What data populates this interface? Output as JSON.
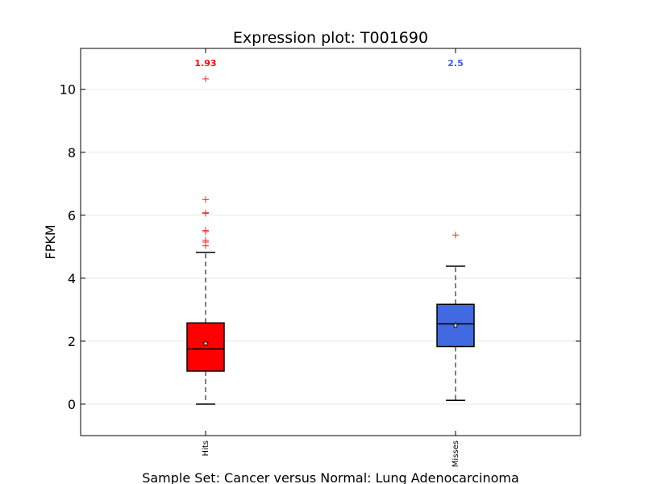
{
  "chart_data": {
    "type": "box",
    "title": "Expression plot: T001690",
    "xlabel": "Sample Set: Cancer versus Normal: Lung Adenocarcinoma",
    "ylabel": "FPKM",
    "ylim": [
      -1,
      11.3
    ],
    "yticks": [
      0,
      2,
      4,
      6,
      8,
      10
    ],
    "grid": true,
    "outlier_color": "#e0302e",
    "categories": [
      "Hits",
      "Misses"
    ],
    "boxes": [
      {
        "name": "Hits",
        "color": "#ff0000",
        "mean_label": "1.93",
        "mean_label_color": "#ff0000",
        "whisker_low": 0.0,
        "q1": 1.05,
        "median": 1.75,
        "q3": 2.58,
        "whisker_high": 4.82,
        "mean": 1.93,
        "outliers": [
          10.33,
          6.5,
          6.08,
          6.06,
          5.52,
          5.48,
          5.2,
          5.15,
          5.03
        ]
      },
      {
        "name": "Misses",
        "color": "#4169e1",
        "mean_label": "2.5",
        "mean_label_color": "#3a62d8",
        "whisker_low": 0.12,
        "q1": 1.83,
        "median": 2.55,
        "q3": 3.17,
        "whisker_high": 4.38,
        "mean": 2.5,
        "outliers": [
          5.37
        ]
      }
    ]
  }
}
